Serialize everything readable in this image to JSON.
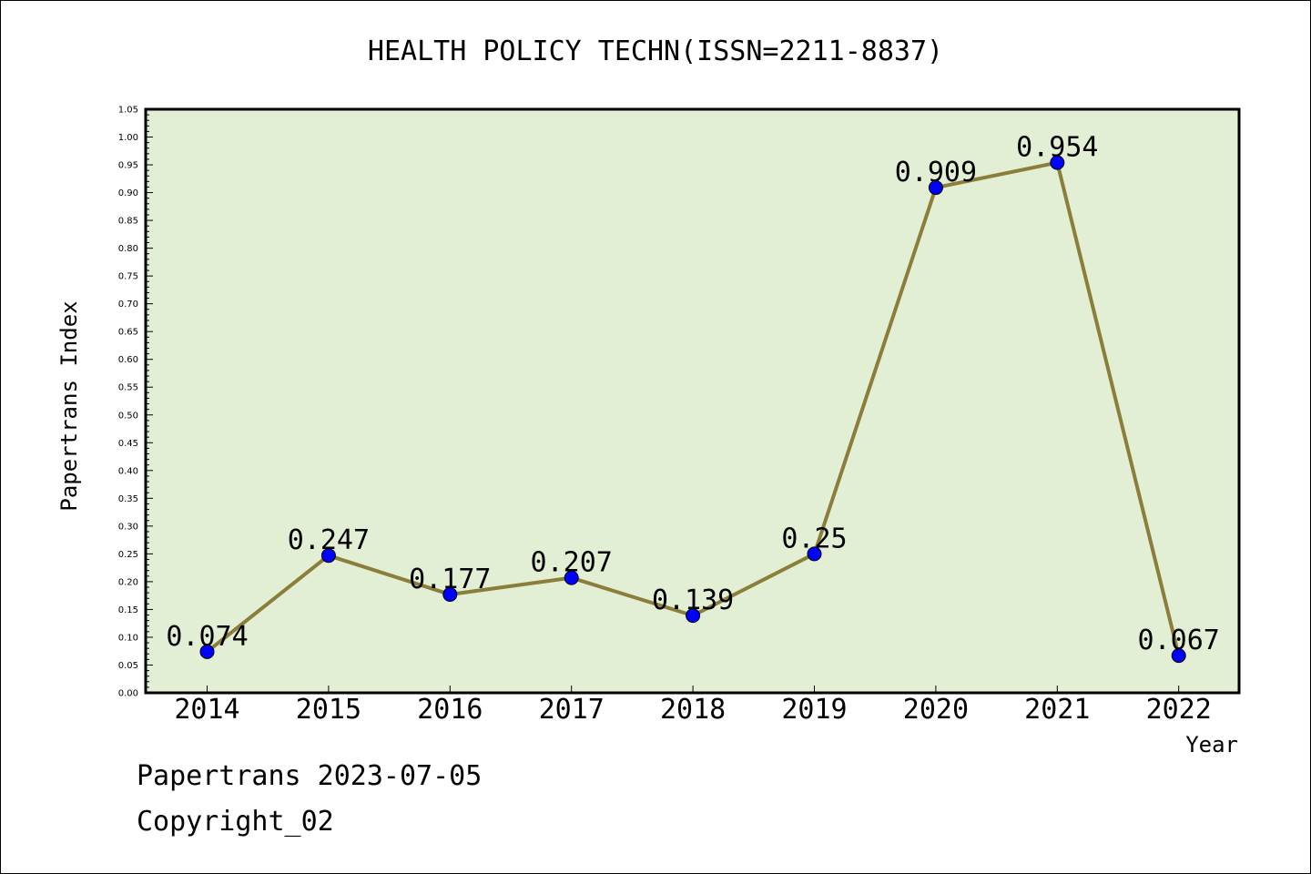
{
  "footer": {
    "line1": "Papertrans 2023-07-05",
    "line2": "Copyright_02"
  },
  "colors": {
    "plot_background": "#e2efd4",
    "line": "#8b7d3a",
    "marker": "#0000ff",
    "axis": "#000000"
  },
  "chart_data": {
    "type": "line",
    "title": "HEALTH POLICY TECHN(ISSN=2211-8837)",
    "xlabel": "Year",
    "ylabel": "Papertrans Index",
    "categories": [
      "2014",
      "2015",
      "2016",
      "2017",
      "2018",
      "2019",
      "2020",
      "2021",
      "2022"
    ],
    "series": [
      {
        "values": [
          0.074,
          0.247,
          0.177,
          0.207,
          0.139,
          0.25,
          0.909,
          0.954,
          0.067
        ],
        "labels": [
          "0.074",
          "0.247",
          "0.177",
          "0.207",
          "0.139",
          "0.25",
          "0.909",
          "0.954",
          "0.067"
        ]
      }
    ],
    "ylim": [
      0,
      1.05
    ],
    "ytick_step": 0.05,
    "ytick_labels": [
      "0.00",
      "0.05",
      "0.10",
      "0.15",
      "0.20",
      "0.25",
      "0.30",
      "0.35",
      "0.40",
      "0.45",
      "0.50",
      "0.55",
      "0.60",
      "0.65",
      "0.70",
      "0.75",
      "0.80",
      "0.85",
      "0.90",
      "0.95",
      "1.00",
      "1.05"
    ],
    "grid": false,
    "legend": "none"
  }
}
